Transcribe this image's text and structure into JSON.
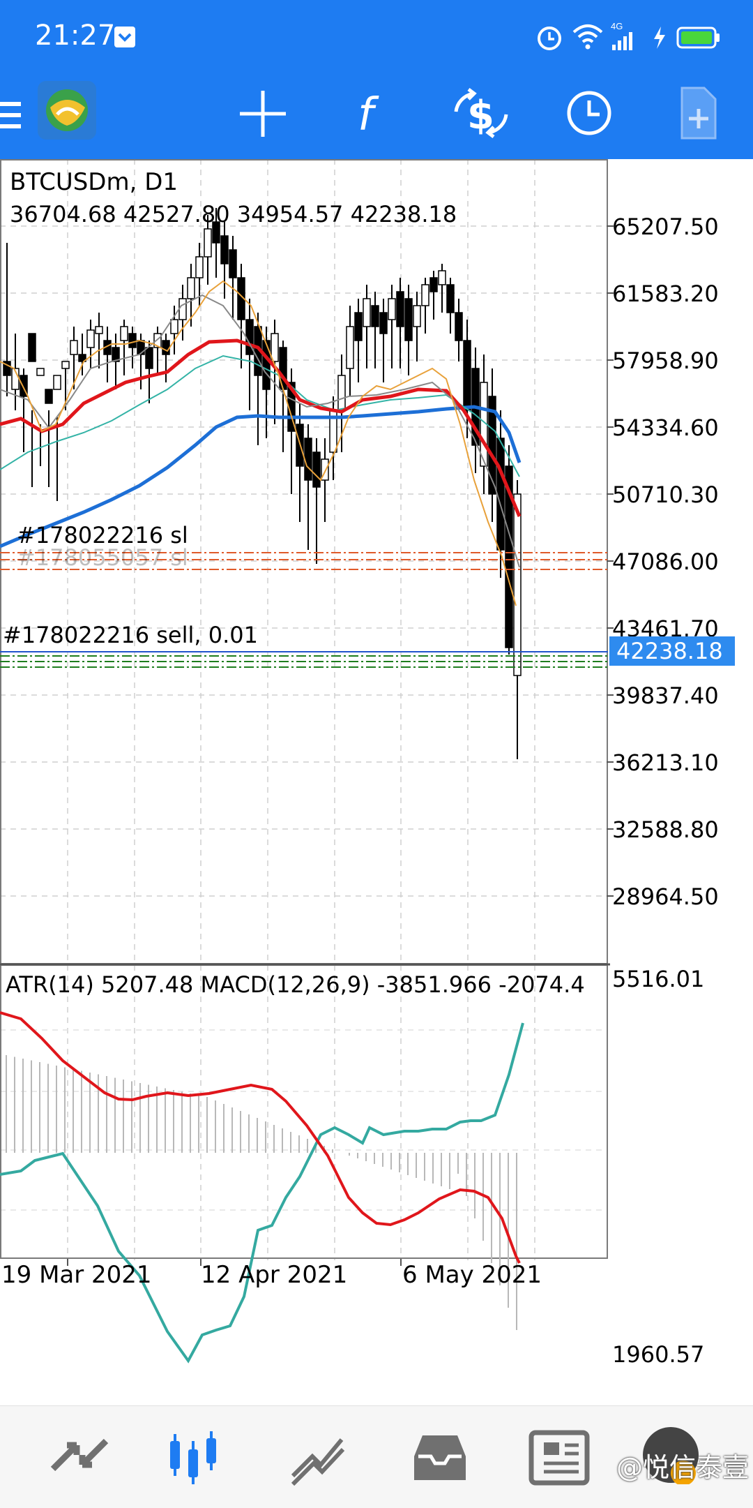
{
  "status_bar": {
    "time": "21:27",
    "network": "4G"
  },
  "toolbar": {
    "icons": [
      "menu-icon",
      "metatrader-logo",
      "crosshair-icon",
      "indicators-icon",
      "trade-icon",
      "history-clock-icon",
      "new-order-icon"
    ]
  },
  "chart": {
    "symbol": "BTCUSDm, D1",
    "ohlc": "36704.68 42527.80 34954.57 42238.18",
    "price_axis": [
      "65207.50",
      "61583.20",
      "57958.90",
      "54334.60",
      "50710.30",
      "47086.00",
      "43461.70",
      "39837.40",
      "36213.10",
      "32588.80",
      "28964.50"
    ],
    "current_price": "42238.18",
    "colors": {
      "bull_body": "#ffffff",
      "bear_body": "#000000",
      "ma_fast": "#e8a13a",
      "ma_gray": "#888888",
      "ma_red": "#e0161b",
      "ma_teal": "#33b3a6",
      "ma_blue": "#1d6fd6",
      "current_price_bg": "#2e8bef",
      "order_line": "#2255cc",
      "tp_line": "#1e7d1e",
      "sl_line": "#e05a2a"
    },
    "orders": {
      "sl_label": "#178022216 sl",
      "sl_label_hidden": "#178055057 sl",
      "sell_label": "#178022216 sell, 0.01"
    },
    "indicator": {
      "label": "ATR(14) 5207.48 MACD(12,26,9) -3851.966 -2074.4",
      "top_value": "5516.01",
      "bottom_value": "1960.57",
      "atr_color": "#34a9a0",
      "signal_color": "#e0161b"
    },
    "time_axis": [
      "19 Mar 2021",
      "12 Apr 2021",
      "6 May 2021"
    ]
  },
  "bottom_nav": {
    "items": [
      "quotes-icon",
      "chart-icon",
      "trade-icon",
      "history-icon",
      "news-icon"
    ],
    "active": "chart-icon"
  },
  "watermark": "@悦信泰壹"
}
